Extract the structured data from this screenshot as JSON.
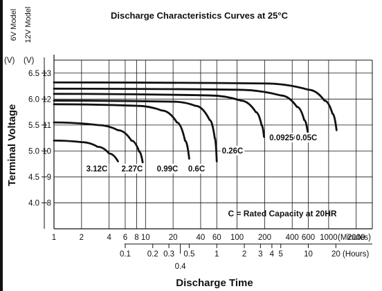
{
  "chart_data": {
    "type": "line",
    "title": "Discharge Characteristics Curves at 25°C",
    "xlabel": "Discharge Time",
    "ylabel": "Terminal Voltage",
    "x_scale": "log",
    "x_unit": "minutes",
    "xlim": [
      1,
      3000
    ],
    "ylim_6v": [
      3.5,
      6.75
    ],
    "ylim_12v": [
      7,
      13.5
    ],
    "grid": true,
    "models": {
      "left": "6V Model",
      "right": "12V Model"
    },
    "y_units": {
      "left": "(V)",
      "right": "(V)"
    },
    "y_ticks_6v": [
      "6.5",
      "6.0",
      "5.5",
      "5.0",
      "4.5",
      "4.0"
    ],
    "y_ticks_12v": [
      "13",
      "12",
      "11",
      "10",
      "9",
      "8"
    ],
    "x_ticks_minutes": [
      {
        "v": 1,
        "label": "1"
      },
      {
        "v": 2,
        "label": "2"
      },
      {
        "v": 4,
        "label": "4"
      },
      {
        "v": 6,
        "label": "6"
      },
      {
        "v": 8,
        "label": "8"
      },
      {
        "v": 10,
        "label": "10"
      },
      {
        "v": 20,
        "label": "20"
      },
      {
        "v": 40,
        "label": "40"
      },
      {
        "v": 60,
        "label": "60"
      },
      {
        "v": 100,
        "label": "100"
      },
      {
        "v": 200,
        "label": "200"
      },
      {
        "v": 400,
        "label": "400"
      },
      {
        "v": 600,
        "label": "600"
      },
      {
        "v": 1000,
        "label": "1000"
      },
      {
        "v": 2000,
        "label": "2000"
      }
    ],
    "x_unit_minutes_label": "(Minutes)",
    "x_ticks_hours": [
      {
        "v": 0.1,
        "label": "0.1"
      },
      {
        "v": 0.2,
        "label": "0.2"
      },
      {
        "v": 0.3,
        "label": "0.3"
      },
      {
        "v": 0.4,
        "label": "0.4"
      },
      {
        "v": 0.5,
        "label": "0.5"
      },
      {
        "v": 1,
        "label": "1"
      },
      {
        "v": 2,
        "label": "2"
      },
      {
        "v": 3,
        "label": "3"
      },
      {
        "v": 4,
        "label": "4"
      },
      {
        "v": 5,
        "label": "5"
      },
      {
        "v": 10,
        "label": "10"
      },
      {
        "v": 20,
        "label": "20"
      }
    ],
    "x_unit_hours_label": "(Hours)",
    "annotation": "C = Rated Capacity at 20HR",
    "series": [
      {
        "label": "3.12C",
        "points": [
          [
            1,
            5.2
          ],
          [
            2,
            5.17
          ],
          [
            3,
            5.08
          ],
          [
            4,
            4.95
          ],
          [
            5,
            4.8
          ]
        ]
      },
      {
        "label": "2.27C",
        "points": [
          [
            1,
            5.55
          ],
          [
            3,
            5.5
          ],
          [
            5,
            5.4
          ],
          [
            7,
            5.2
          ],
          [
            8.5,
            4.99
          ],
          [
            9.3,
            4.78
          ]
        ]
      },
      {
        "label": "0.99C",
        "points": [
          [
            1,
            5.9
          ],
          [
            8,
            5.87
          ],
          [
            15,
            5.78
          ],
          [
            22,
            5.55
          ],
          [
            27,
            5.2
          ],
          [
            30,
            4.85
          ]
        ]
      },
      {
        "label": "0.6C",
        "points": [
          [
            1,
            5.97
          ],
          [
            20,
            5.95
          ],
          [
            35,
            5.87
          ],
          [
            50,
            5.6
          ],
          [
            57,
            5.25
          ],
          [
            60,
            4.8
          ]
        ]
      },
      {
        "label": "0.26C",
        "points": [
          [
            1,
            6.1
          ],
          [
            50,
            6.07
          ],
          [
            110,
            5.97
          ],
          [
            160,
            5.75
          ],
          [
            185,
            5.5
          ],
          [
            197,
            5.27
          ]
        ]
      },
      {
        "label": "0.0925C",
        "points": [
          [
            1,
            6.2
          ],
          [
            100,
            6.18
          ],
          [
            300,
            6.07
          ],
          [
            450,
            5.85
          ],
          [
            540,
            5.6
          ],
          [
            590,
            5.37
          ]
        ]
      },
      {
        "label": "0.05C",
        "points": [
          [
            1,
            6.32
          ],
          [
            200,
            6.3
          ],
          [
            600,
            6.18
          ],
          [
            900,
            5.97
          ],
          [
            1100,
            5.72
          ],
          [
            1220,
            5.4
          ]
        ]
      }
    ]
  }
}
